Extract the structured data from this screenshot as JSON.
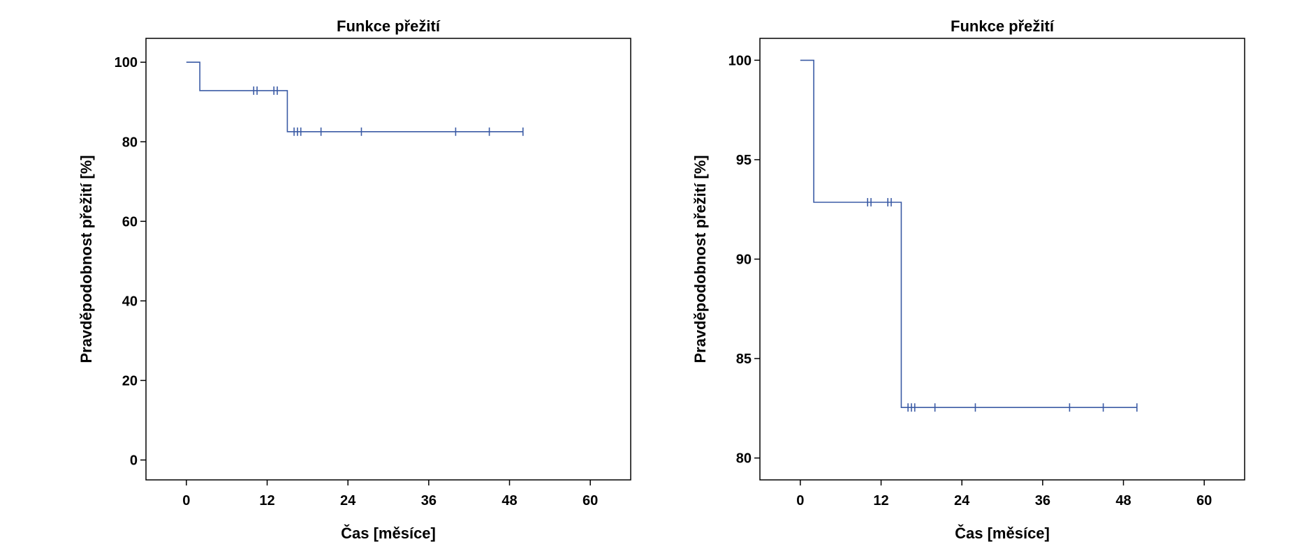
{
  "chart_data": [
    {
      "type": "line",
      "subtype": "kaplan-meier-step",
      "title": "Funkce přežití",
      "xlabel": "Čas [měsíce]",
      "ylabel": "Pravděpodobnost přežití [%]",
      "xlim": [
        -6,
        66
      ],
      "ylim": [
        -5,
        106
      ],
      "xticks": [
        0,
        12,
        24,
        36,
        48,
        60
      ],
      "yticks": [
        0,
        20,
        40,
        60,
        80,
        100
      ],
      "grid": false,
      "line_color": "#3b5ba5",
      "steps": [
        [
          0,
          100
        ],
        [
          2,
          100
        ],
        [
          2,
          92.86
        ],
        [
          15,
          92.86
        ],
        [
          15,
          82.54
        ],
        [
          50,
          82.54
        ]
      ],
      "censored": [
        [
          10,
          92.86
        ],
        [
          10.5,
          92.86
        ],
        [
          13,
          92.86
        ],
        [
          13.5,
          92.86
        ],
        [
          16,
          82.54
        ],
        [
          16.5,
          82.54
        ],
        [
          17,
          82.54
        ],
        [
          20,
          82.54
        ],
        [
          26,
          82.54
        ],
        [
          40,
          82.54
        ],
        [
          45,
          82.54
        ],
        [
          50,
          82.54
        ]
      ]
    },
    {
      "type": "line",
      "subtype": "kaplan-meier-step",
      "title": "Funkce přežití",
      "xlabel": "Čas [měsíce]",
      "ylabel": "Pravděpodobnost přežití [%]",
      "xlim": [
        -6,
        66
      ],
      "ylim": [
        78.9,
        101.1
      ],
      "xticks": [
        0,
        12,
        24,
        36,
        48,
        60
      ],
      "yticks": [
        80,
        85,
        90,
        95,
        100
      ],
      "grid": false,
      "line_color": "#3b5ba5",
      "steps": [
        [
          0,
          100
        ],
        [
          2,
          100
        ],
        [
          2,
          92.86
        ],
        [
          15,
          92.86
        ],
        [
          15,
          82.54
        ],
        [
          50,
          82.54
        ]
      ],
      "censored": [
        [
          10,
          92.86
        ],
        [
          10.5,
          92.86
        ],
        [
          13,
          92.86
        ],
        [
          13.5,
          92.86
        ],
        [
          16,
          82.54
        ],
        [
          16.5,
          82.54
        ],
        [
          17,
          82.54
        ],
        [
          20,
          82.54
        ],
        [
          26,
          82.54
        ],
        [
          40,
          82.54
        ],
        [
          45,
          82.54
        ],
        [
          50,
          82.54
        ]
      ]
    }
  ]
}
